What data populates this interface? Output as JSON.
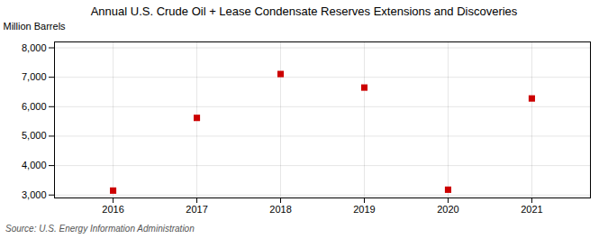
{
  "chart_data": {
    "type": "scatter",
    "title": "Annual U.S. Crude Oil + Lease Condensate Reserves Extensions and Discoveries",
    "ylabel": "Million Barrels",
    "source": "Source: U.S. Energy Information Administration",
    "x": [
      2016,
      2017,
      2018,
      2019,
      2020,
      2021
    ],
    "values": [
      3150,
      5620,
      7110,
      6650,
      3180,
      6280
    ],
    "color": "#cc0000",
    "marker": "square",
    "xlim": [
      2015.3,
      2021.7
    ],
    "xticks": [
      2016,
      2017,
      2018,
      2019,
      2020,
      2021
    ],
    "ylim": [
      2900,
      8200
    ],
    "yticks": [
      {
        "value": 3000,
        "label": "3,000"
      },
      {
        "value": 4000,
        "label": "4,000"
      },
      {
        "value": 5000,
        "label": "5,000"
      },
      {
        "value": 6000,
        "label": "6,000"
      },
      {
        "value": 7000,
        "label": "7,000"
      },
      {
        "value": 8000,
        "label": "8,000"
      }
    ],
    "grid": true
  }
}
